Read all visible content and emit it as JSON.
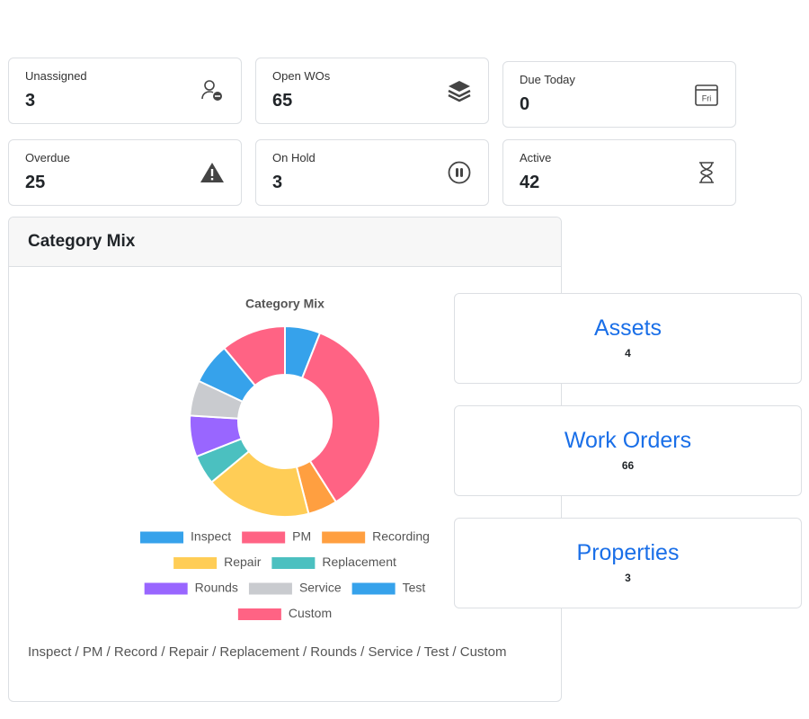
{
  "stats": [
    {
      "label": "Unassigned",
      "value": "3"
    },
    {
      "label": "Open WOs",
      "value": "65"
    },
    {
      "label": "Due Today",
      "value": "0"
    },
    {
      "label": "Overdue",
      "value": "25"
    },
    {
      "label": "On Hold",
      "value": "3"
    },
    {
      "label": "Active",
      "value": "42"
    }
  ],
  "panel": {
    "title": "Category Mix",
    "footnote": "Inspect / PM / Record / Repair / Replacement / Rounds / Service / Test / Custom"
  },
  "icon_text": "Fri",
  "chart_data": {
    "type": "doughnut",
    "title": "Category Mix",
    "categories": [
      "Inspect",
      "PM",
      "Recording",
      "Repair",
      "Replacement",
      "Rounds",
      "Service",
      "Test",
      "Custom"
    ],
    "values": [
      6,
      35,
      5,
      18,
      5,
      7,
      6,
      7,
      11
    ],
    "colors": [
      "#36a2eb",
      "#ff6384",
      "#ff9f40",
      "#ffcd56",
      "#4bc0c0",
      "#9966ff",
      "#c9cbcf",
      "#36a2eb",
      "#ff6384"
    ]
  },
  "summary": [
    {
      "title": "Assets",
      "value": "4"
    },
    {
      "title": "Work Orders",
      "value": "66"
    },
    {
      "title": "Properties",
      "value": "3"
    }
  ]
}
